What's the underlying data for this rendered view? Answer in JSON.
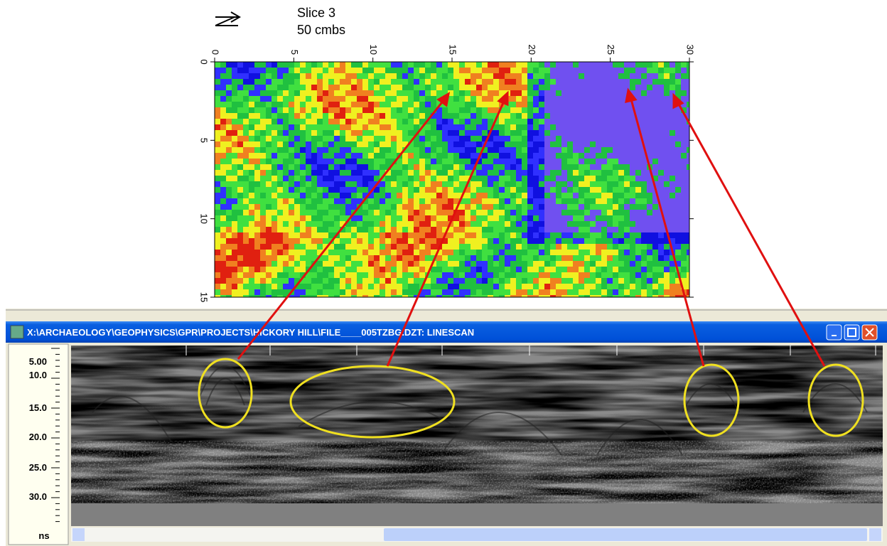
{
  "map": {
    "title_lines": [
      "Slice 3",
      "50 cmbs"
    ],
    "x_ticks": [
      0,
      5,
      10,
      15,
      20,
      25,
      30
    ],
    "y_ticks": [
      0,
      5,
      10,
      15
    ]
  },
  "window": {
    "title": "X:\\ARCHAEOLOGY\\GEOPHYSICS\\GPR\\PROJECTS\\HICKORY HILL\\FILE____005TZBG.DZT:  LINESCAN",
    "scale_labels": [
      "5.00",
      "10.0",
      "15.0",
      "20.0",
      "25.0",
      "30.0"
    ],
    "scale_unit": "ns"
  }
}
